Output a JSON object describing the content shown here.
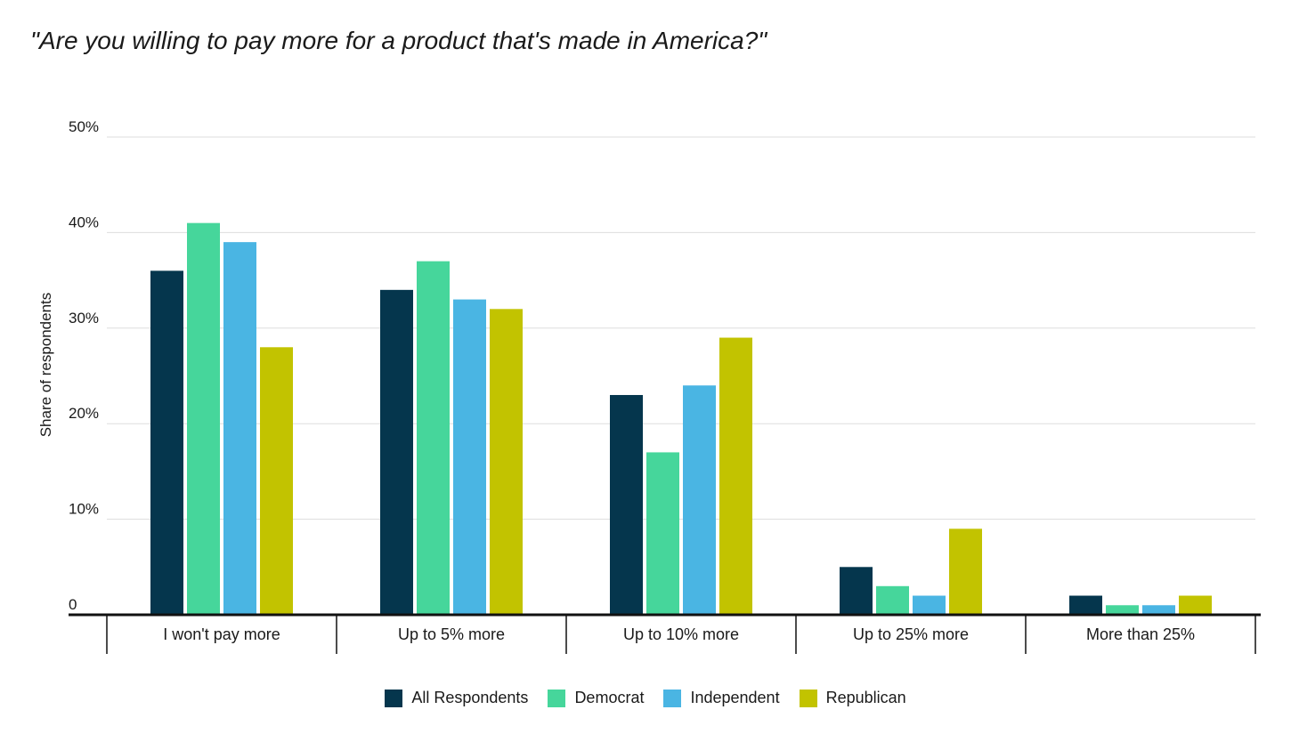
{
  "chart_data": {
    "type": "bar",
    "title": "\"Are you willing to pay more for a product that's made in America?\"",
    "ylabel": "Share of respondents",
    "xlabel": "",
    "ylim": [
      0,
      50
    ],
    "yticks": [
      {
        "value": 0,
        "label": "0"
      },
      {
        "value": 10,
        "label": "10%"
      },
      {
        "value": 20,
        "label": "20%"
      },
      {
        "value": 30,
        "label": "30%"
      },
      {
        "value": 40,
        "label": "40%"
      },
      {
        "value": 50,
        "label": "50%"
      }
    ],
    "grid": true,
    "legend_position": "bottom",
    "categories": [
      "I won't pay more",
      "Up to 5% more",
      "Up to 10% more",
      "Up to 25% more",
      "More than 25%"
    ],
    "series": [
      {
        "name": "All Respondents",
        "color": "#05364d",
        "values": [
          36,
          34,
          23,
          5,
          2
        ]
      },
      {
        "name": "Democrat",
        "color": "#46d69b",
        "values": [
          41,
          37,
          17,
          3,
          1
        ]
      },
      {
        "name": "Independent",
        "color": "#4ab5e3",
        "values": [
          39,
          33,
          24,
          2,
          1
        ]
      },
      {
        "name": "Republican",
        "color": "#c2c300",
        "values": [
          28,
          32,
          29,
          9,
          2
        ]
      }
    ]
  }
}
